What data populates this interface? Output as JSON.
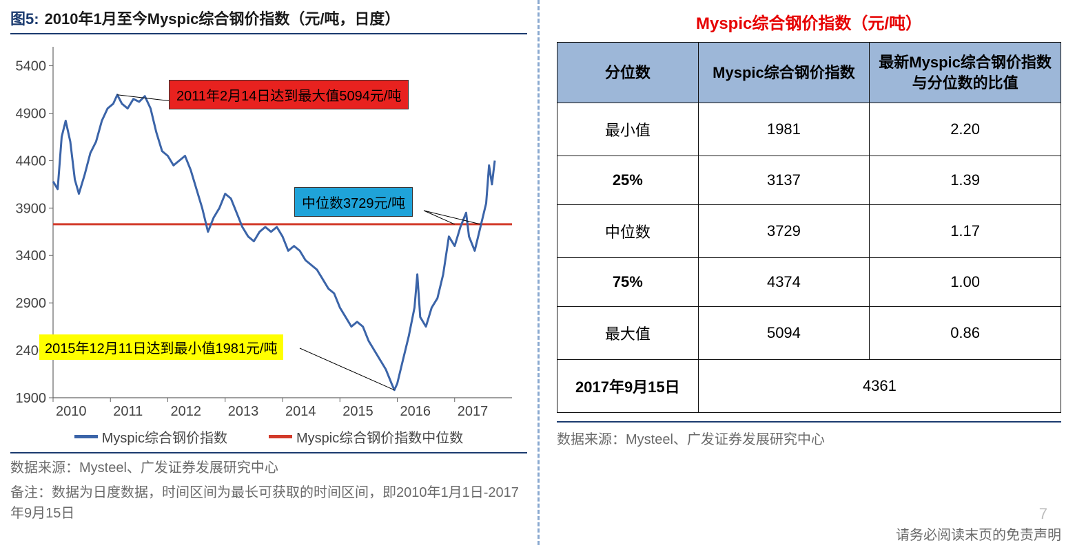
{
  "left": {
    "title_prefix": "图5:",
    "title_text": "2010年1月至今Myspic综合钢价指数（元/吨，日度）",
    "chart": {
      "type": "line",
      "xlim": [
        2010,
        2018
      ],
      "ylim": [
        1900,
        5600
      ],
      "xticks": [
        2010,
        2011,
        2012,
        2013,
        2014,
        2015,
        2016,
        2017
      ],
      "yticks": [
        1900,
        2400,
        2900,
        3400,
        3900,
        4400,
        4900,
        5400
      ],
      "line_color": "#3b64a8",
      "line_width": 3,
      "median_value": 3729,
      "median_color": "#d23a2a",
      "median_width": 3,
      "axis_color": "#666666",
      "tick_fontsize": 20,
      "series": [
        [
          2010.0,
          4180
        ],
        [
          2010.08,
          4100
        ],
        [
          2010.15,
          4650
        ],
        [
          2010.22,
          4820
        ],
        [
          2010.3,
          4600
        ],
        [
          2010.38,
          4200
        ],
        [
          2010.45,
          4050
        ],
        [
          2010.55,
          4250
        ],
        [
          2010.65,
          4480
        ],
        [
          2010.75,
          4600
        ],
        [
          2010.85,
          4820
        ],
        [
          2010.95,
          4950
        ],
        [
          2011.05,
          5000
        ],
        [
          2011.12,
          5094
        ],
        [
          2011.2,
          5000
        ],
        [
          2011.3,
          4950
        ],
        [
          2011.4,
          5050
        ],
        [
          2011.5,
          5020
        ],
        [
          2011.6,
          5080
        ],
        [
          2011.7,
          4950
        ],
        [
          2011.8,
          4700
        ],
        [
          2011.9,
          4500
        ],
        [
          2012.0,
          4450
        ],
        [
          2012.1,
          4350
        ],
        [
          2012.2,
          4400
        ],
        [
          2012.3,
          4450
        ],
        [
          2012.4,
          4300
        ],
        [
          2012.5,
          4100
        ],
        [
          2012.6,
          3900
        ],
        [
          2012.7,
          3650
        ],
        [
          2012.8,
          3800
        ],
        [
          2012.9,
          3900
        ],
        [
          2013.0,
          4050
        ],
        [
          2013.1,
          4000
        ],
        [
          2013.2,
          3850
        ],
        [
          2013.3,
          3700
        ],
        [
          2013.4,
          3600
        ],
        [
          2013.5,
          3550
        ],
        [
          2013.6,
          3650
        ],
        [
          2013.7,
          3700
        ],
        [
          2013.8,
          3650
        ],
        [
          2013.9,
          3700
        ],
        [
          2014.0,
          3600
        ],
        [
          2014.1,
          3450
        ],
        [
          2014.2,
          3500
        ],
        [
          2014.3,
          3450
        ],
        [
          2014.4,
          3350
        ],
        [
          2014.5,
          3300
        ],
        [
          2014.6,
          3250
        ],
        [
          2014.7,
          3150
        ],
        [
          2014.8,
          3050
        ],
        [
          2014.9,
          3000
        ],
        [
          2015.0,
          2850
        ],
        [
          2015.1,
          2750
        ],
        [
          2015.2,
          2650
        ],
        [
          2015.3,
          2700
        ],
        [
          2015.4,
          2650
        ],
        [
          2015.5,
          2500
        ],
        [
          2015.6,
          2400
        ],
        [
          2015.7,
          2300
        ],
        [
          2015.8,
          2200
        ],
        [
          2015.9,
          2050
        ],
        [
          2015.95,
          1981
        ],
        [
          2016.0,
          2050
        ],
        [
          2016.1,
          2300
        ],
        [
          2016.2,
          2550
        ],
        [
          2016.3,
          2850
        ],
        [
          2016.35,
          3200
        ],
        [
          2016.4,
          2750
        ],
        [
          2016.5,
          2650
        ],
        [
          2016.6,
          2850
        ],
        [
          2016.7,
          2950
        ],
        [
          2016.8,
          3200
        ],
        [
          2016.9,
          3600
        ],
        [
          2017.0,
          3500
        ],
        [
          2017.1,
          3700
        ],
        [
          2017.2,
          3850
        ],
        [
          2017.25,
          3600
        ],
        [
          2017.35,
          3450
        ],
        [
          2017.45,
          3700
        ],
        [
          2017.55,
          3950
        ],
        [
          2017.6,
          4350
        ],
        [
          2017.65,
          4150
        ],
        [
          2017.7,
          4400
        ]
      ],
      "annotations": {
        "max": {
          "text": "2011年2月14日达到最大值5094元/吨",
          "bg": "#e8221f"
        },
        "median": {
          "text": "中位数3729元/吨",
          "bg": "#1fa3d9"
        },
        "min": {
          "text": "2015年12月11日达到最小值1981元/吨",
          "bg": "#ffff00"
        }
      }
    },
    "legend": {
      "series_label": "Myspic综合钢价指数",
      "median_label": "Myspic综合钢价指数中位数"
    },
    "source": "数据来源：Mysteel、广发证券发展研究中心",
    "note": "备注：数据为日度数据，时间区间为最长可获取的时间区间，即2010年1月1日-2017年9月15日"
  },
  "right": {
    "title": "Myspic综合钢价指数（元/吨）",
    "table": {
      "header_bg": "#9db7d8",
      "columns": [
        "分位数",
        "Myspic综合钢价指数",
        "最新Myspic综合钢价指数与分位数的比值"
      ],
      "rows": [
        {
          "label": "最小值",
          "bold": false,
          "v1": "1981",
          "v2": "2.20"
        },
        {
          "label": "25%",
          "bold": true,
          "v1": "3137",
          "v2": "1.39"
        },
        {
          "label": "中位数",
          "bold": false,
          "v1": "3729",
          "v2": "1.17"
        },
        {
          "label": "75%",
          "bold": true,
          "v1": "4374",
          "v2": "1.00"
        },
        {
          "label": "最大值",
          "bold": false,
          "v1": "5094",
          "v2": "0.86"
        }
      ],
      "footer": {
        "label": "2017年9月15日",
        "value": "4361"
      }
    },
    "source": "数据来源：Mysteel、广发证券发展研究中心",
    "page_number": "7",
    "disclaimer": "请务必阅读末页的免责声明"
  }
}
